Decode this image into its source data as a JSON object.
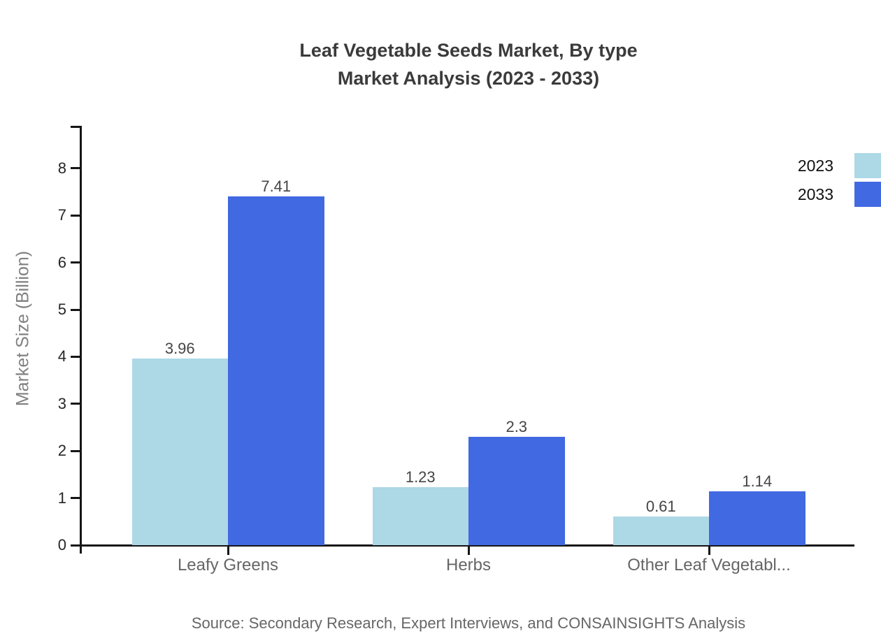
{
  "title": {
    "line1": "Leaf Vegetable Seeds Market, By type",
    "line2": "Market Analysis (2023 - 2033)"
  },
  "source": "Source: Secondary Research, Expert Interviews, and CONSAINSIGHTS Analysis",
  "chart_data": {
    "type": "bar",
    "title": "Leaf Vegetable Seeds Market, By type Market Analysis (2023 - 2033)",
    "categories": [
      "Leafy Greens",
      "Herbs",
      "Other Leaf Vegetabl..."
    ],
    "series": [
      {
        "name": "2023",
        "color": "#ADD8E6",
        "values": [
          3.96,
          1.23,
          0.61
        ]
      },
      {
        "name": "2033",
        "color": "#4169E1",
        "values": [
          7.41,
          2.3,
          1.14
        ]
      }
    ],
    "ylabel": "Market Size (Billion)",
    "xlabel": "",
    "yticks": [
      0,
      1,
      2,
      3,
      4,
      5,
      6,
      7,
      8
    ],
    "ylim": [
      0,
      8.9
    ],
    "grid": false,
    "legend_position": "top-right",
    "value_labels_shown": true
  }
}
